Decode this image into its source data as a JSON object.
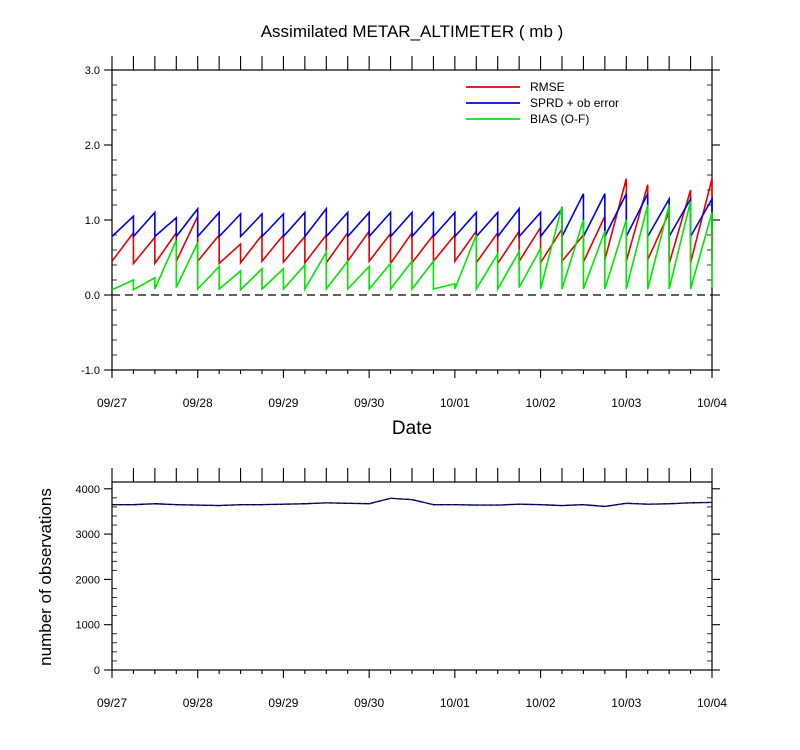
{
  "chart_data": [
    {
      "type": "line",
      "title": "Assimilated METAR_ALTIMETER ( mb )",
      "xlabel": "Date",
      "ylabel": "",
      "x_ticks": [
        "09/27",
        "09/28",
        "09/29",
        "09/30",
        "10/01",
        "10/02",
        "10/03",
        "10/04"
      ],
      "xlim": [
        "2023-09-27 00:00",
        "2023-10-04 00:00"
      ],
      "ylim": [
        -1.0,
        3.0
      ],
      "y_ticks": [
        "-1.0",
        "0.0",
        "1.0",
        "2.0",
        "3.0"
      ],
      "y_tick_values": [
        -1,
        0,
        1,
        2,
        3
      ],
      "legend_position": "top-right",
      "zero_line": "dashed",
      "cycle_dates": [
        "09/27 00",
        "09/27 06",
        "09/27 12",
        "09/27 18",
        "09/28 00",
        "09/28 06",
        "09/28 12",
        "09/28 18",
        "09/29 00",
        "09/29 06",
        "09/29 12",
        "09/29 18",
        "09/30 00",
        "09/30 06",
        "09/30 12",
        "09/30 18",
        "10/01 00",
        "10/01 06",
        "10/01 12",
        "10/01 18",
        "10/02 00",
        "10/02 06",
        "10/02 12",
        "10/02 18",
        "10/03 00",
        "10/03 06",
        "10/03 12",
        "10/03 18",
        "10/04 00"
      ],
      "series": [
        {
          "name": "RMSE",
          "color": "#e80000",
          "start": [
            0.45,
            0.42,
            0.42,
            0.45,
            0.45,
            0.42,
            0.43,
            0.45,
            0.44,
            0.43,
            0.43,
            0.45,
            0.45,
            0.42,
            0.43,
            0.45,
            0.45,
            0.43,
            0.42,
            0.45,
            0.43,
            0.45,
            0.44,
            0.47,
            0.45,
            0.47,
            0.42,
            0.43,
            0.45
          ],
          "end": [
            0.83,
            0.77,
            0.83,
            1.05,
            0.8,
            0.68,
            0.8,
            0.8,
            0.78,
            0.8,
            0.83,
            0.85,
            0.82,
            0.83,
            0.8,
            0.8,
            0.85,
            0.83,
            0.85,
            0.9,
            0.88,
            0.8,
            1.05,
            1.55,
            1.47,
            1.1,
            1.4,
            1.55,
            1.4
          ]
        },
        {
          "name": "SPRD + ob error",
          "color": "#0000e8",
          "start": [
            0.78,
            0.78,
            0.78,
            0.78,
            0.78,
            0.78,
            0.78,
            0.78,
            0.78,
            0.78,
            0.78,
            0.78,
            0.78,
            0.78,
            0.78,
            0.78,
            0.78,
            0.78,
            0.78,
            0.78,
            0.78,
            0.78,
            0.78,
            0.78,
            0.78,
            0.78,
            0.78,
            0.78,
            0.8
          ],
          "end": [
            1.05,
            1.1,
            1.03,
            1.15,
            1.1,
            1.08,
            1.08,
            1.08,
            1.1,
            1.15,
            1.1,
            1.1,
            1.1,
            1.1,
            1.1,
            1.1,
            1.1,
            1.1,
            1.15,
            1.1,
            1.15,
            1.35,
            1.35,
            1.35,
            1.35,
            1.28,
            1.28,
            1.28,
            1.42
          ]
        },
        {
          "name": "BIAS (O-F)",
          "color": "#00e800",
          "start": [
            0.07,
            0.07,
            0.08,
            0.1,
            0.08,
            0.08,
            0.07,
            0.08,
            0.08,
            0.08,
            0.08,
            0.08,
            0.08,
            0.08,
            0.08,
            0.08,
            0.08,
            0.08,
            0.08,
            0.1,
            0.08,
            0.08,
            0.08,
            0.08,
            0.08,
            0.08,
            0.08,
            0.08,
            0.1
          ],
          "end": [
            0.2,
            0.23,
            0.73,
            0.7,
            0.38,
            0.32,
            0.35,
            0.35,
            0.4,
            0.57,
            0.45,
            0.38,
            0.42,
            0.45,
            0.45,
            0.15,
            0.8,
            0.55,
            0.58,
            0.62,
            1.18,
            1.0,
            0.85,
            1.0,
            1.2,
            1.2,
            1.25,
            1.1,
            1.2
          ]
        }
      ]
    },
    {
      "type": "line",
      "title": "",
      "xlabel": "",
      "ylabel": "number of observations",
      "x_ticks": [
        "09/27",
        "09/28",
        "09/29",
        "09/30",
        "10/01",
        "10/02",
        "10/03",
        "10/04"
      ],
      "xlim": [
        "2023-09-27 00:00",
        "2023-10-04 00:00"
      ],
      "ylim": [
        0,
        4150
      ],
      "y_ticks": [
        "0",
        "1000",
        "2000",
        "3000",
        "4000"
      ],
      "y_tick_values": [
        0,
        1000,
        2000,
        3000,
        4000
      ],
      "series": [
        {
          "color": "#0000c8",
          "x": [
            "09/27 00",
            "09/27 06",
            "09/27 12",
            "09/27 18",
            "09/28 00",
            "09/28 06",
            "09/28 12",
            "09/28 18",
            "09/29 00",
            "09/29 06",
            "09/29 12",
            "09/29 18",
            "09/30 00",
            "09/30 06",
            "09/30 12",
            "09/30 18",
            "10/01 00",
            "10/01 06",
            "10/01 12",
            "10/01 18",
            "10/02 00",
            "10/02 06",
            "10/02 12",
            "10/02 18",
            "10/03 00",
            "10/03 06",
            "10/03 12",
            "10/03 18",
            "10/04 00"
          ],
          "values": [
            3650,
            3650,
            3670,
            3650,
            3640,
            3630,
            3650,
            3650,
            3660,
            3670,
            3690,
            3680,
            3670,
            3790,
            3760,
            3650,
            3650,
            3640,
            3640,
            3660,
            3650,
            3630,
            3650,
            3610,
            3680,
            3660,
            3670,
            3690,
            3700
          ]
        }
      ]
    }
  ]
}
